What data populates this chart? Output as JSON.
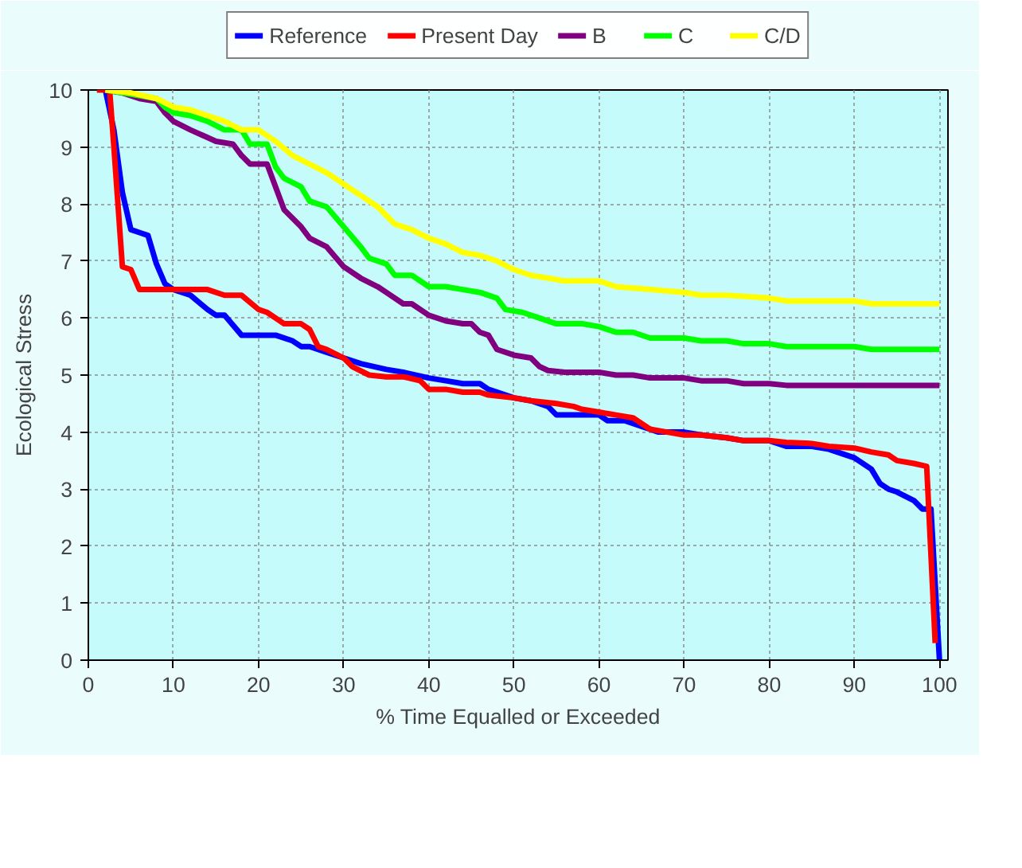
{
  "chart_data": {
    "type": "line",
    "xlabel": "% Time Equalled or Exceeded",
    "ylabel": "Ecological Stress",
    "x": [
      2,
      3,
      4,
      5,
      6,
      7,
      8,
      9,
      10,
      12,
      14,
      15,
      16,
      18,
      20,
      22,
      24,
      25,
      26,
      28,
      30,
      32,
      35,
      37,
      40,
      42,
      44,
      46,
      47,
      50,
      52,
      54,
      55,
      58,
      60,
      61,
      63,
      65,
      67,
      70,
      72,
      75,
      77,
      80,
      82,
      85,
      87,
      90,
      92,
      93,
      94,
      95,
      97,
      98,
      99,
      100
    ],
    "series": [
      {
        "name": "Reference",
        "color": "#0000ff",
        "values": [
          10,
          9.3,
          8.2,
          7.55,
          7.5,
          7.45,
          6.95,
          6.6,
          6.5,
          6.4,
          6.15,
          6.05,
          6.05,
          5.7,
          5.7,
          5.7,
          5.6,
          5.5,
          5.5,
          5.4,
          5.3,
          5.2,
          5.1,
          5.05,
          4.95,
          4.9,
          4.85,
          4.85,
          4.75,
          4.6,
          4.55,
          4.45,
          4.3,
          4.3,
          4.3,
          4.2,
          4.2,
          4.1,
          4.0,
          4.0,
          3.95,
          3.9,
          3.85,
          3.85,
          3.75,
          3.75,
          3.7,
          3.55,
          3.35,
          3.1,
          3.0,
          2.95,
          2.8,
          2.65,
          2.65,
          0
        ]
      },
      {
        "name": "Present Day",
        "color": "#ff0000",
        "x": [
          1,
          2.5,
          3,
          4,
          5,
          6,
          8,
          10,
          12,
          14,
          16,
          18,
          20,
          21,
          22,
          23,
          25,
          26,
          27,
          28,
          30,
          31,
          33,
          35,
          37,
          39,
          40,
          42,
          44,
          46,
          47,
          50,
          52,
          55,
          57,
          58,
          60,
          62,
          64,
          66,
          68,
          70,
          72,
          75,
          77,
          80,
          82,
          85,
          87,
          90,
          92,
          94,
          95,
          97,
          98.5,
          99.5
        ],
        "values": [
          10,
          10,
          9,
          6.9,
          6.85,
          6.5,
          6.5,
          6.5,
          6.5,
          6.5,
          6.4,
          6.4,
          6.15,
          6.1,
          6.0,
          5.9,
          5.9,
          5.8,
          5.5,
          5.45,
          5.3,
          5.15,
          5.0,
          4.97,
          4.97,
          4.9,
          4.75,
          4.75,
          4.7,
          4.7,
          4.65,
          4.6,
          4.55,
          4.5,
          4.45,
          4.4,
          4.35,
          4.3,
          4.25,
          4.05,
          4.0,
          3.95,
          3.95,
          3.9,
          3.85,
          3.85,
          3.82,
          3.8,
          3.75,
          3.72,
          3.65,
          3.6,
          3.5,
          3.45,
          3.4,
          0.3
        ]
      },
      {
        "name": "B",
        "color": "#800080",
        "x": [
          2,
          4,
          6,
          8,
          9,
          10,
          12,
          15,
          17,
          18,
          19,
          21,
          22,
          23,
          25,
          26,
          28,
          30,
          32,
          34,
          35,
          37,
          38,
          40,
          42,
          44,
          45,
          46,
          47,
          48,
          50,
          52,
          53,
          54,
          56,
          60,
          62,
          64,
          66,
          70,
          72,
          75,
          77,
          80,
          82,
          100
        ],
        "values": [
          10,
          9.95,
          9.85,
          9.8,
          9.6,
          9.45,
          9.3,
          9.1,
          9.05,
          8.85,
          8.7,
          8.7,
          8.3,
          7.9,
          7.6,
          7.4,
          7.25,
          6.9,
          6.7,
          6.55,
          6.45,
          6.25,
          6.25,
          6.05,
          5.95,
          5.9,
          5.9,
          5.75,
          5.7,
          5.45,
          5.35,
          5.3,
          5.15,
          5.08,
          5.05,
          5.05,
          5.0,
          5.0,
          4.95,
          4.95,
          4.9,
          4.9,
          4.85,
          4.85,
          4.82,
          4.82
        ]
      },
      {
        "name": "C",
        "color": "#00ff00",
        "x": [
          2,
          4,
          6,
          8,
          9,
          10,
          12,
          14,
          16,
          18,
          19,
          21,
          22,
          23,
          25,
          26,
          28,
          30,
          32,
          33,
          35,
          36,
          38,
          40,
          42,
          44,
          46,
          48,
          49,
          51,
          53,
          55,
          58,
          60,
          62,
          64,
          66,
          70,
          72,
          75,
          77,
          80,
          82,
          90,
          92,
          100
        ],
        "values": [
          10,
          9.95,
          9.9,
          9.85,
          9.7,
          9.6,
          9.55,
          9.45,
          9.3,
          9.3,
          9.05,
          9.05,
          8.65,
          8.45,
          8.3,
          8.05,
          7.95,
          7.6,
          7.25,
          7.05,
          6.95,
          6.75,
          6.75,
          6.55,
          6.55,
          6.5,
          6.45,
          6.35,
          6.15,
          6.1,
          6.0,
          5.9,
          5.9,
          5.85,
          5.75,
          5.75,
          5.65,
          5.65,
          5.6,
          5.6,
          5.55,
          5.55,
          5.5,
          5.5,
          5.45,
          5.45
        ]
      },
      {
        "name": "C/D",
        "color": "#ffff00",
        "x": [
          2,
          5,
          8,
          10,
          12,
          14,
          16,
          18,
          20,
          22,
          24,
          26,
          28,
          30,
          32,
          34,
          36,
          38,
          40,
          42,
          44,
          46,
          48,
          50,
          52,
          54,
          56,
          60,
          62,
          66,
          70,
          72,
          75,
          80,
          82,
          90,
          92,
          100
        ],
        "values": [
          10,
          9.95,
          9.85,
          9.7,
          9.65,
          9.55,
          9.45,
          9.3,
          9.3,
          9.1,
          8.85,
          8.7,
          8.55,
          8.35,
          8.15,
          7.95,
          7.65,
          7.55,
          7.4,
          7.3,
          7.15,
          7.1,
          7.0,
          6.85,
          6.75,
          6.7,
          6.65,
          6.65,
          6.55,
          6.5,
          6.45,
          6.4,
          6.4,
          6.35,
          6.3,
          6.3,
          6.25,
          6.25
        ]
      }
    ],
    "xlim": [
      0,
      101
    ],
    "xticks": [
      0,
      10,
      20,
      30,
      40,
      50,
      60,
      70,
      80,
      90,
      100
    ],
    "ylim": [
      0,
      10
    ],
    "yticks": [
      0,
      1,
      2,
      3,
      4,
      5,
      6,
      7,
      8,
      9,
      10
    ],
    "grid": true,
    "legend": "top",
    "line_style": "solid",
    "marker": "none"
  }
}
